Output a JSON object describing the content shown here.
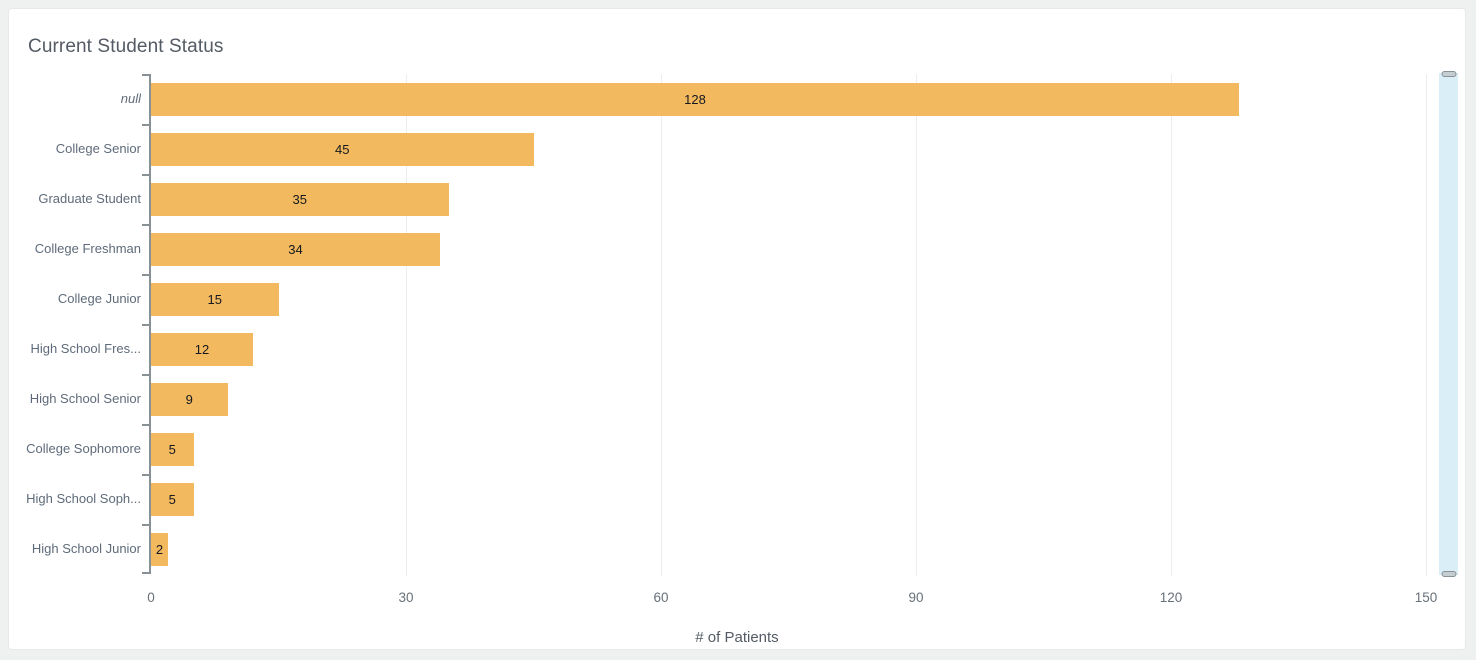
{
  "title": "Current Student Status",
  "chart_data": {
    "type": "bar",
    "orientation": "horizontal",
    "title": "Current Student Status",
    "categories": [
      "null",
      "College Senior",
      "Graduate Student",
      "College Freshman",
      "College Junior",
      "High School Fres...",
      "High School Senior",
      "College Sophomore",
      "High School Soph...",
      "High School Junior"
    ],
    "values": [
      128,
      45,
      35,
      34,
      15,
      12,
      9,
      5,
      5,
      2
    ],
    "xlabel": "# of Patients",
    "ylabel": "",
    "x_ticks": [
      0,
      30,
      60,
      90,
      120,
      150
    ],
    "xlim": [
      0,
      150
    ],
    "grid": true,
    "legend": "none",
    "value_labels_shown": true,
    "range_slider_position": "right"
  },
  "colors": {
    "bar": "#F2B95F",
    "title_text": "#545B64",
    "category_text": "#5F6B7A",
    "tick_text": "#687078",
    "value_text": "#16191F",
    "axis_line": "#879196",
    "gridline": "#EDEDED",
    "slider_track": "#D9EEF6",
    "slider_handle": "#C5CDD3",
    "slider_handle_border": "#879196",
    "card_bg": "#FFFFFF",
    "page_bg": "#EFF1F1"
  }
}
